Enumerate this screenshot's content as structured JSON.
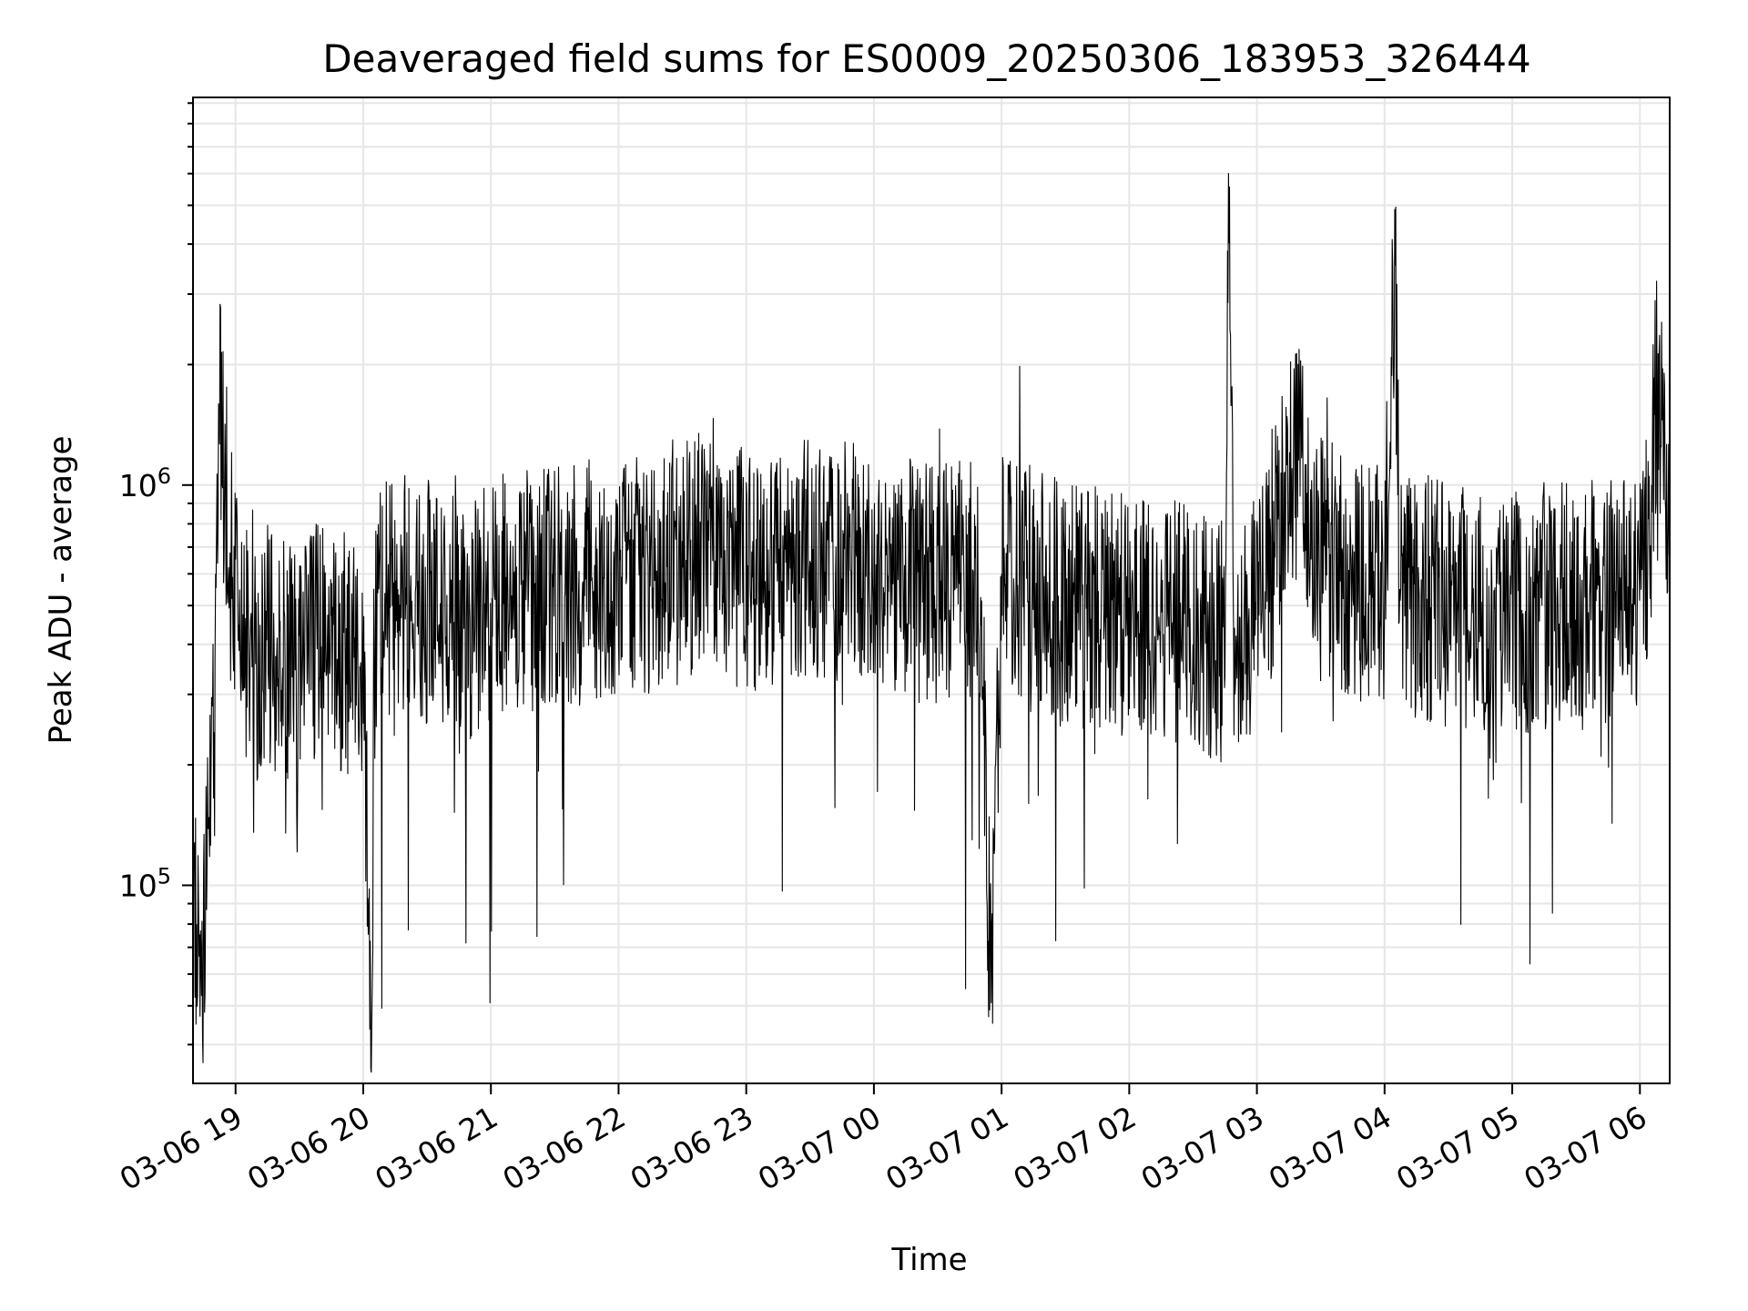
{
  "chart_data": {
    "type": "line",
    "title": "Deaveraged field sums for ES0009_20250306_183953_326444",
    "xlabel": "Time",
    "ylabel": "Peak ADU - average",
    "yscale": "log",
    "ylim": [
      32000,
      9300000
    ],
    "xlim": [
      "2025-03-06 18:40",
      "2025-03-07 06:14"
    ],
    "x_ticks": [
      {
        "label": "03-06 19",
        "t": "2025-03-06 19:00"
      },
      {
        "label": "03-06 20",
        "t": "2025-03-06 20:00"
      },
      {
        "label": "03-06 21",
        "t": "2025-03-06 21:00"
      },
      {
        "label": "03-06 22",
        "t": "2025-03-06 22:00"
      },
      {
        "label": "03-06 23",
        "t": "2025-03-06 23:00"
      },
      {
        "label": "03-07 00",
        "t": "2025-03-07 00:00"
      },
      {
        "label": "03-07 01",
        "t": "2025-03-07 01:00"
      },
      {
        "label": "03-07 02",
        "t": "2025-03-07 02:00"
      },
      {
        "label": "03-07 03",
        "t": "2025-03-07 03:00"
      },
      {
        "label": "03-07 04",
        "t": "2025-03-07 04:00"
      },
      {
        "label": "03-07 05",
        "t": "2025-03-07 05:00"
      },
      {
        "label": "03-07 06",
        "t": "2025-03-07 06:00"
      }
    ],
    "y_ticks": [
      {
        "base": "10",
        "exp": "5",
        "value": 100000
      },
      {
        "base": "10",
        "exp": "6",
        "value": 1000000
      }
    ],
    "grid": true,
    "line_color": "#000000",
    "series": [
      {
        "x": [
          "2025-03-06 18:40",
          "2025-03-06 18:42",
          "2025-03-06 18:44",
          "2025-03-06 18:46",
          "2025-03-06 18:48",
          "2025-03-06 18:50",
          "2025-03-06 18:52",
          "2025-03-06 18:55",
          "2025-03-06 18:58",
          "2025-03-06 19:01",
          "2025-03-06 19:05",
          "2025-03-06 19:08",
          "2025-03-06 19:10",
          "2025-03-06 19:12",
          "2025-03-06 19:14",
          "2025-03-06 19:18",
          "2025-03-06 19:25",
          "2025-03-06 19:40",
          "2025-03-06 20:00",
          "2025-03-06 20:04",
          "2025-03-06 20:05",
          "2025-03-06 20:07",
          "2025-03-06 20:20",
          "2025-03-06 20:35",
          "2025-03-06 20:50",
          "2025-03-06 21:00",
          "2025-03-06 21:30",
          "2025-03-06 22:00",
          "2025-03-06 22:30",
          "2025-03-06 22:45",
          "2025-03-06 22:50",
          "2025-03-06 23:00",
          "2025-03-06 23:30",
          "2025-03-07 00:00",
          "2025-03-07 00:30",
          "2025-03-07 00:50",
          "2025-03-07 00:55",
          "2025-03-07 01:00",
          "2025-03-07 01:30",
          "2025-03-07 02:00",
          "2025-03-07 02:30",
          "2025-03-07 02:45",
          "2025-03-07 02:47",
          "2025-03-07 02:49",
          "2025-03-07 03:00",
          "2025-03-07 03:20",
          "2025-03-07 03:30",
          "2025-03-07 03:45",
          "2025-03-07 04:00",
          "2025-03-07 04:05",
          "2025-03-07 04:07",
          "2025-03-07 04:30",
          "2025-03-07 05:00",
          "2025-03-07 05:30",
          "2025-03-07 06:00",
          "2025-03-07 06:05",
          "2025-03-07 06:08",
          "2025-03-07 06:10",
          "2025-03-07 06:14"
        ],
        "y": [
          95000,
          70000,
          45000,
          90000,
          180000,
          300000,
          1600000,
          1050000,
          700000,
          420000,
          380000,
          400000,
          350000,
          380000,
          420000,
          380000,
          350000,
          400000,
          380000,
          45000,
          380000,
          500000,
          550000,
          500000,
          450000,
          520000,
          550000,
          600000,
          620000,
          750000,
          650000,
          600000,
          650000,
          620000,
          550000,
          600000,
          48000,
          600000,
          500000,
          480000,
          450000,
          400000,
          6600000,
          450000,
          500000,
          1200000,
          650000,
          600000,
          550000,
          3600000,
          550000,
          500000,
          480000,
          520000,
          500000,
          800000,
          2000000,
          1300000,
          700000
        ]
      }
    ]
  }
}
